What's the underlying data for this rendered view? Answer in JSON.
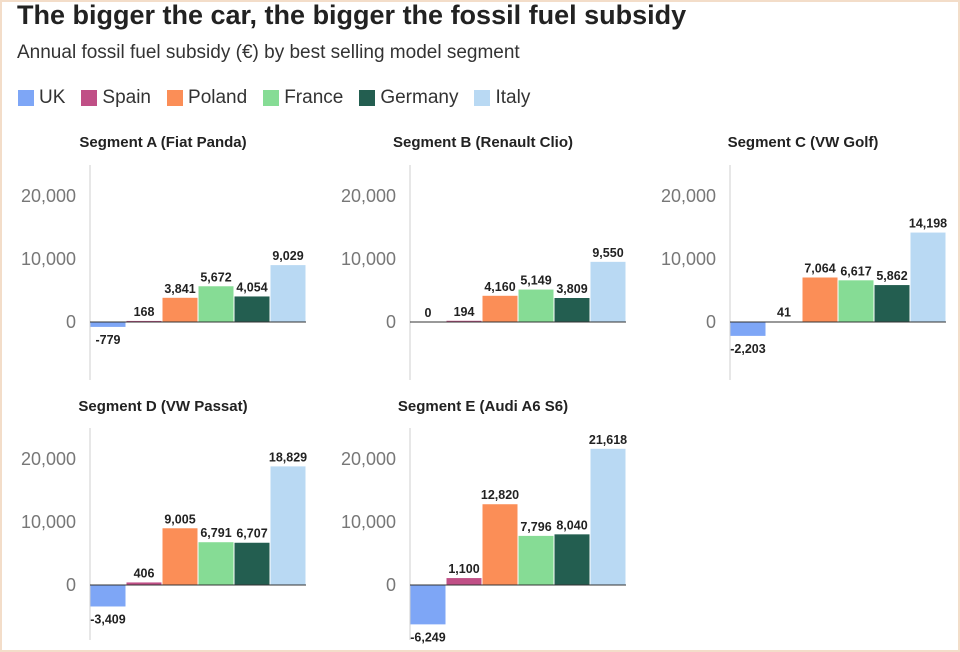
{
  "title": "The bigger the car, the bigger the fossil fuel subsidy",
  "subtitle": "Annual fossil fuel subsidy (€) by best selling model segment",
  "colors": {
    "UK": "#7ea6f6",
    "Spain": "#c04f86",
    "Poland": "#fb8e57",
    "France": "#86dc95",
    "Germany": "#235e50",
    "Italy": "#b9d9f3"
  },
  "legend": [
    "UK",
    "Spain",
    "Poland",
    "France",
    "Germany",
    "Italy"
  ],
  "chart_data": [
    {
      "type": "bar",
      "title": "Segment A (Fiat Panda)",
      "categories": [
        "UK",
        "Spain",
        "Poland",
        "France",
        "Germany",
        "Italy"
      ],
      "values": [
        -779,
        168,
        3841,
        5672,
        4054,
        9029
      ],
      "labels": [
        "-779",
        "168",
        "3,841",
        "5,672",
        "4,054",
        "9,029"
      ],
      "yticks": [
        "0",
        "10,000",
        "20,000"
      ]
    },
    {
      "type": "bar",
      "title": "Segment B (Renault Clio)",
      "categories": [
        "UK",
        "Spain",
        "Poland",
        "France",
        "Germany",
        "Italy"
      ],
      "values": [
        0,
        194,
        4160,
        5149,
        3809,
        9550
      ],
      "labels": [
        "0",
        "194",
        "4,160",
        "5,149",
        "3,809",
        "9,550"
      ],
      "yticks": [
        "0",
        "10,000",
        "20,000"
      ]
    },
    {
      "type": "bar",
      "title": "Segment C (VW Golf)",
      "categories": [
        "UK",
        "Spain",
        "Poland",
        "France",
        "Germany",
        "Italy"
      ],
      "values": [
        -2203,
        41,
        7064,
        6617,
        5862,
        14198
      ],
      "labels": [
        "-2,203",
        "41",
        "7,064",
        "6,617",
        "5,862",
        "14,198"
      ],
      "yticks": [
        "0",
        "10,000",
        "20,000"
      ]
    },
    {
      "type": "bar",
      "title": "Segment D (VW Passat)",
      "categories": [
        "UK",
        "Spain",
        "Poland",
        "France",
        "Germany",
        "Italy"
      ],
      "values": [
        -3409,
        406,
        9005,
        6791,
        6707,
        18829
      ],
      "labels": [
        "-3,409",
        "406",
        "9,005",
        "6,791",
        "6,707",
        "18,829"
      ],
      "yticks": [
        "0",
        "10,000",
        "20,000"
      ]
    },
    {
      "type": "bar",
      "title": "Segment E (Audi A6 S6)",
      "categories": [
        "UK",
        "Spain",
        "Poland",
        "France",
        "Germany",
        "Italy"
      ],
      "values": [
        -6249,
        1100,
        12820,
        7796,
        8040,
        21618
      ],
      "labels": [
        "-6,249",
        "1,100",
        "12,820",
        "7,796",
        "8,040",
        "21,618"
      ],
      "yticks": [
        "0",
        "10,000",
        "20,000"
      ]
    }
  ]
}
